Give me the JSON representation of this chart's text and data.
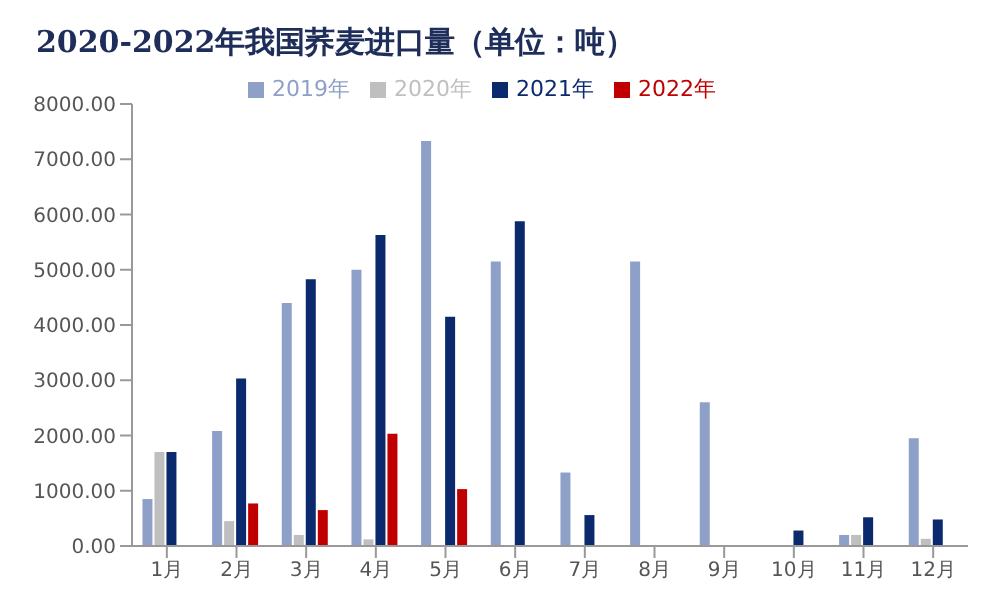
{
  "chart_data": {
    "type": "bar",
    "title": "2020-2022年我国荞麦进口量（单位：吨）",
    "categories": [
      "1月",
      "2月",
      "3月",
      "4月",
      "5月",
      "6月",
      "7月",
      "8月",
      "9月",
      "10月",
      "11月",
      "12月"
    ],
    "series": [
      {
        "name": "2019年",
        "color": "#8ea0c8",
        "values": [
          850,
          2080,
          4400,
          5000,
          7330,
          5150,
          1330,
          5150,
          2600,
          null,
          200,
          1950
        ]
      },
      {
        "name": "2020年",
        "color": "#bfbfbf",
        "values": [
          1700,
          450,
          200,
          120,
          null,
          null,
          null,
          null,
          null,
          null,
          200,
          130
        ]
      },
      {
        "name": "2021年",
        "color": "#0b2a6e",
        "values": [
          1700,
          3030,
          4830,
          5630,
          4150,
          5880,
          560,
          null,
          null,
          280,
          520,
          480
        ]
      },
      {
        "name": "2022年",
        "color": "#c00000",
        "values": [
          null,
          770,
          650,
          2030,
          1030,
          null,
          null,
          null,
          null,
          null,
          null,
          null
        ]
      }
    ],
    "ylim": [
      0,
      8000
    ],
    "yticks": [
      {
        "value": 0,
        "label": "0.00"
      },
      {
        "value": 1000,
        "label": "1000.00"
      },
      {
        "value": 2000,
        "label": "2000.00"
      },
      {
        "value": 3000,
        "label": "3000.00"
      },
      {
        "value": 4000,
        "label": "4000.00"
      },
      {
        "value": 5000,
        "label": "5000.00"
      },
      {
        "value": 6000,
        "label": "6000.00"
      },
      {
        "value": 7000,
        "label": "7000.00"
      },
      {
        "value": 8000,
        "label": "8000.00"
      }
    ],
    "grid": false,
    "legend": "top"
  }
}
